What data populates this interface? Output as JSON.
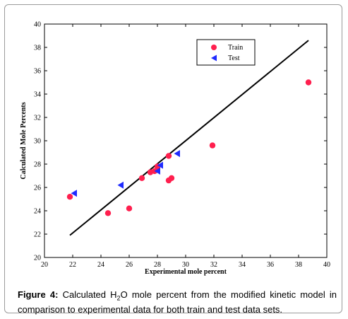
{
  "chart_data": {
    "type": "scatter",
    "xlabel": "Experimental mole percent",
    "ylabel": "Calculated Mole Percents",
    "xlim": [
      20,
      40
    ],
    "ylim": [
      20,
      40
    ],
    "xticks": [
      "20",
      "22",
      "24",
      "26",
      "28",
      "30",
      "32",
      "34",
      "36",
      "38",
      "40"
    ],
    "yticks": [
      "20",
      "22",
      "24",
      "26",
      "28",
      "30",
      "32",
      "34",
      "36",
      "38",
      "40"
    ],
    "grid": false,
    "legend_position": "top-right",
    "fit_line": {
      "x": [
        21.8,
        38.7
      ],
      "y": [
        21.9,
        38.6
      ],
      "color": "#000000"
    },
    "series": [
      {
        "name": "Train",
        "marker": "circle",
        "color": "#ff1f4e",
        "points": [
          [
            21.8,
            25.2
          ],
          [
            24.5,
            23.8
          ],
          [
            26.0,
            24.2
          ],
          [
            26.9,
            26.8
          ],
          [
            27.5,
            27.3
          ],
          [
            27.8,
            27.4
          ],
          [
            28.0,
            27.8
          ],
          [
            28.8,
            26.6
          ],
          [
            29.0,
            26.8
          ],
          [
            28.8,
            28.7
          ],
          [
            31.9,
            29.6
          ],
          [
            38.7,
            35.0
          ]
        ]
      },
      {
        "name": "Test",
        "marker": "triangle-left",
        "color": "#1f2bff",
        "points": [
          [
            22.1,
            25.5
          ],
          [
            25.4,
            26.2
          ],
          [
            28.0,
            27.4
          ],
          [
            28.2,
            27.9
          ],
          [
            29.4,
            28.9
          ]
        ]
      }
    ]
  },
  "caption": {
    "label": "Figure 4:",
    "text_before": " Calculated H",
    "subscript": "2",
    "text_after": "O mole percent from the modified kinetic model in comparison to experimental data for both train and test data sets."
  }
}
